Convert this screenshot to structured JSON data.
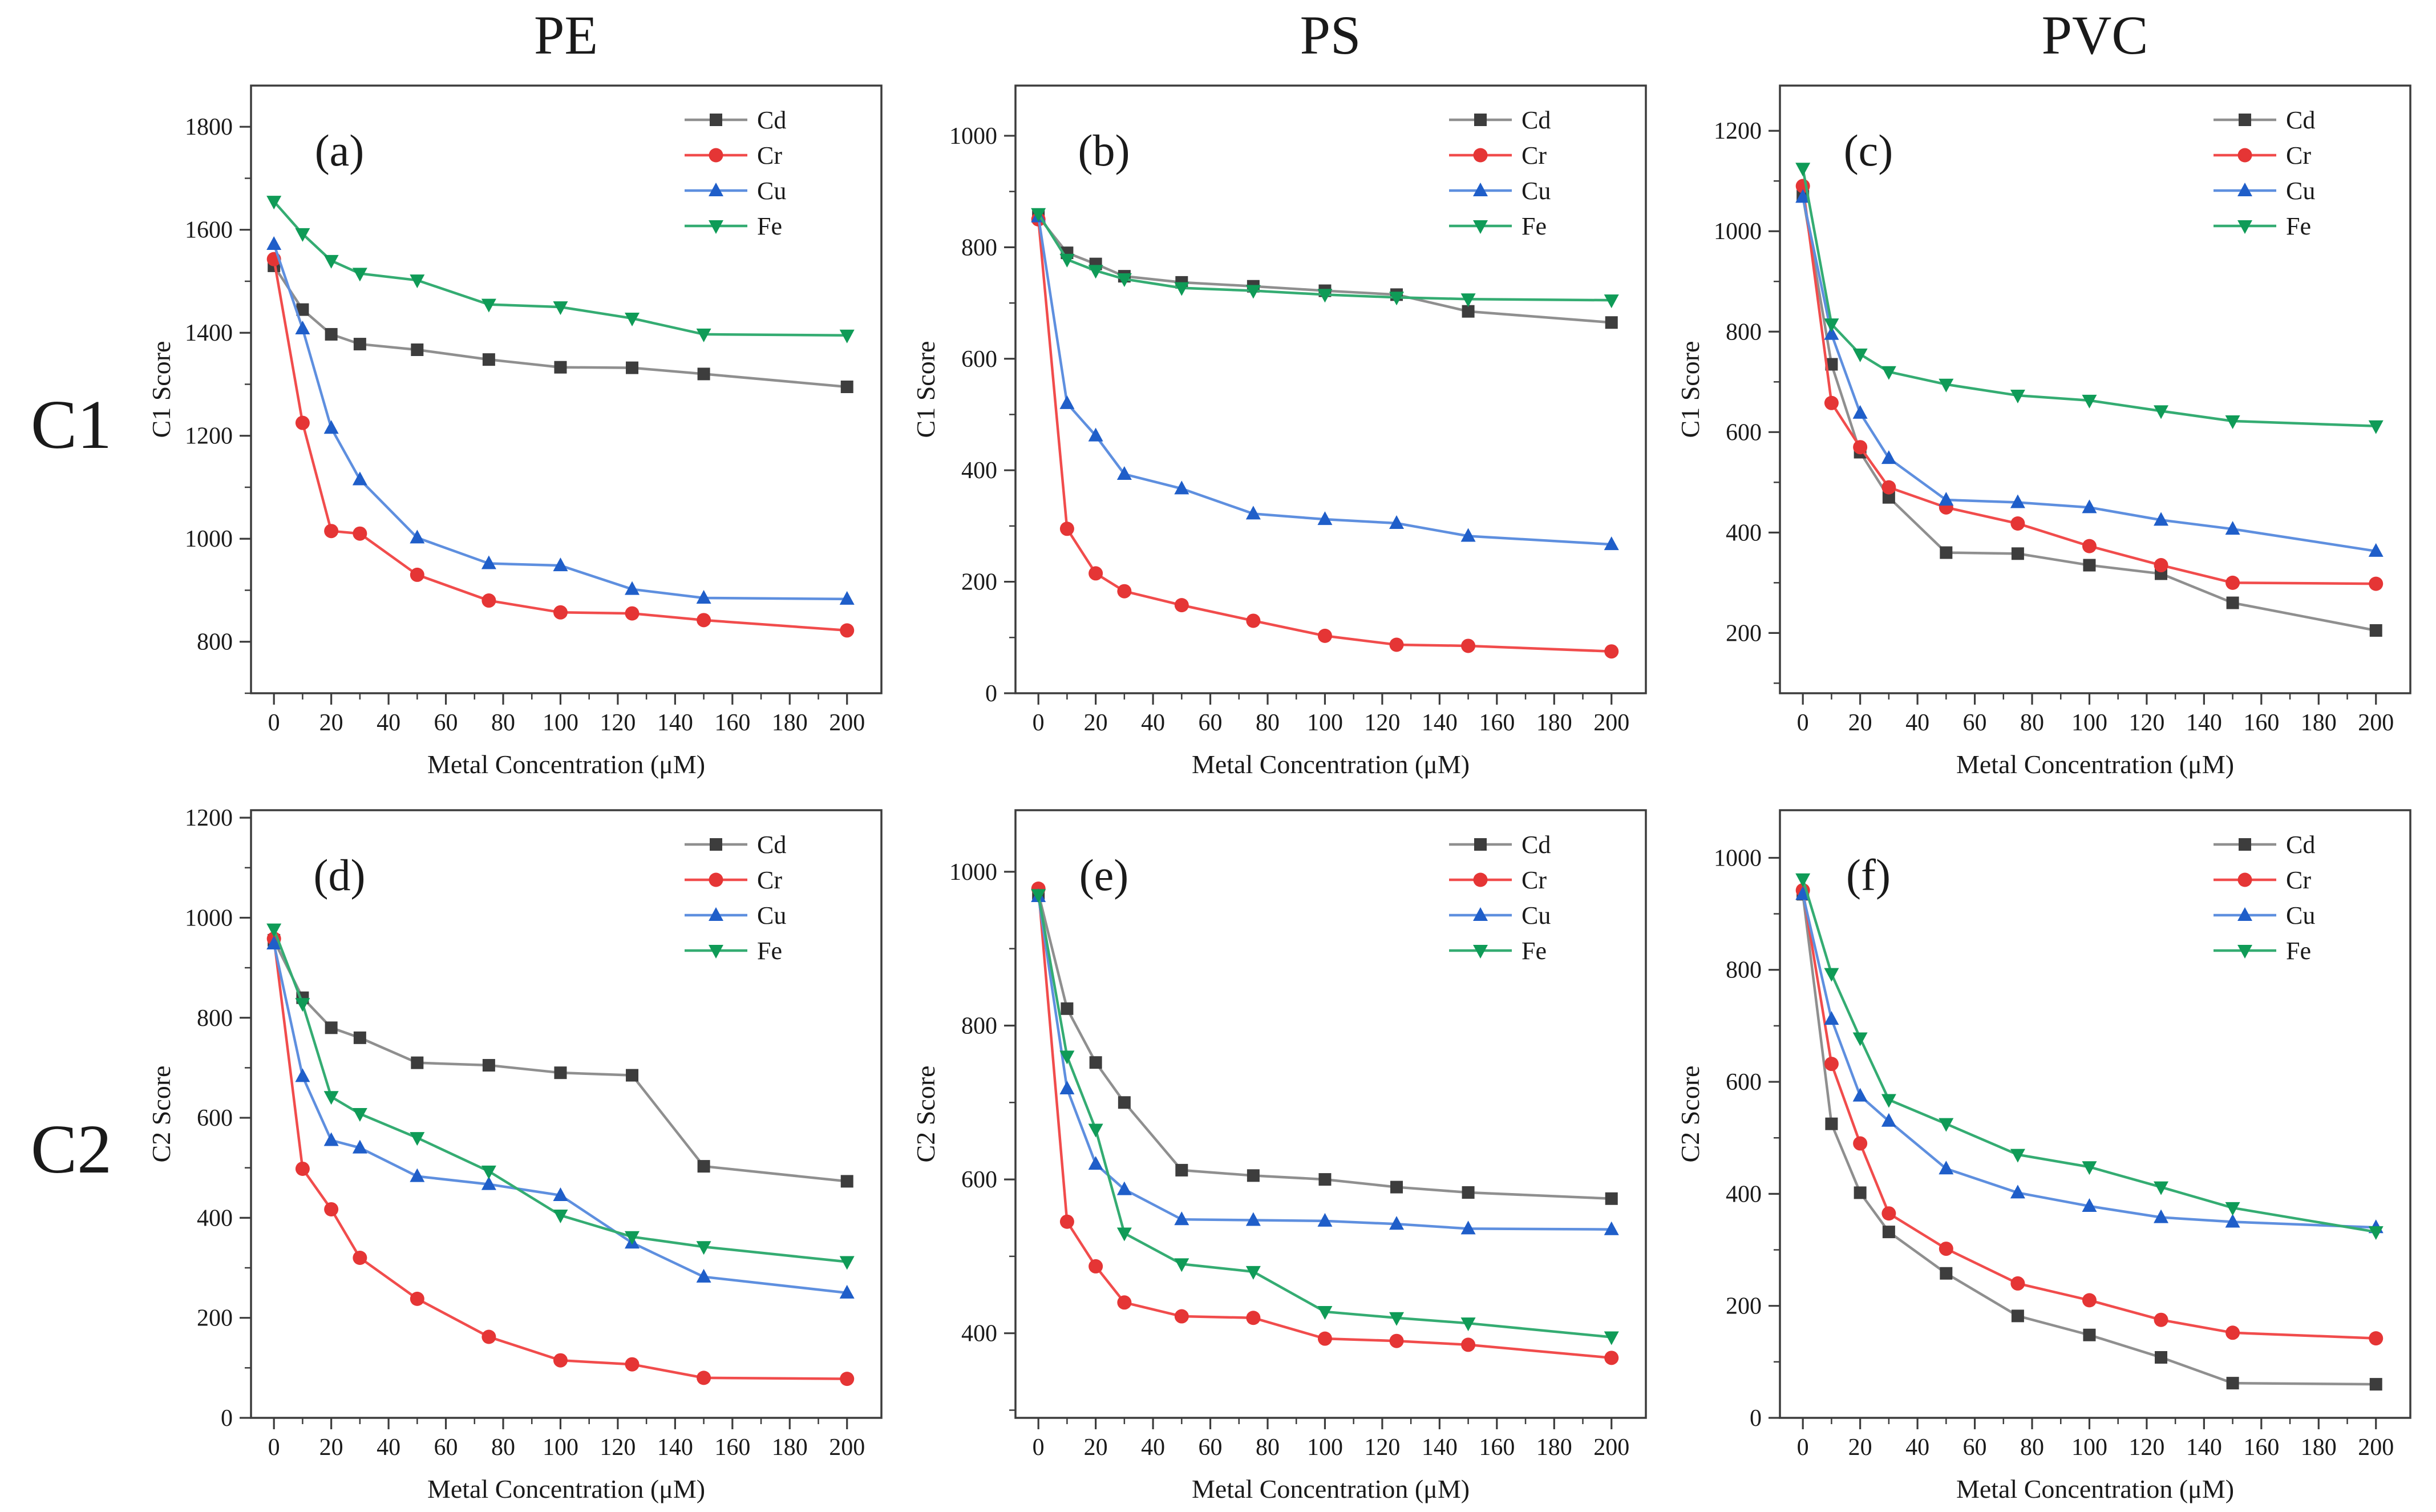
{
  "figure": {
    "background": "#ffffff",
    "columns": [
      {
        "label": "PE"
      },
      {
        "label": "PS"
      },
      {
        "label": "PVC"
      }
    ],
    "rows": [
      {
        "label": "C1"
      },
      {
        "label": "C2"
      }
    ]
  },
  "legend": {
    "entries": [
      "Cd",
      "Cr",
      "Cu",
      "Fe"
    ],
    "position": "top-right"
  },
  "colors": {
    "Cd": {
      "marker": "#3d3d3d",
      "line": "#8f8f8f"
    },
    "Cr": {
      "marker": "#e53535",
      "line": "#f14c4c"
    },
    "Cu": {
      "marker": "#1f5ec9",
      "line": "#5e8fdf"
    },
    "Fe": {
      "marker": "#0f9b57",
      "line": "#34ac72"
    },
    "axis": "#3c3c3c",
    "text": "#1a1a1a"
  },
  "chart_data": [
    {
      "type": "line",
      "panel_label": "(a)",
      "column": "PE",
      "row": "C1",
      "xlabel": "Metal Concentration (μM)",
      "ylabel": "C1 Score",
      "x": [
        0,
        10,
        20,
        30,
        50,
        75,
        100,
        125,
        150,
        200
      ],
      "xlim": [
        -8,
        212
      ],
      "xticks": [
        0,
        20,
        40,
        60,
        80,
        100,
        120,
        140,
        160,
        180,
        200
      ],
      "ylim": [
        700,
        1880
      ],
      "yticks": [
        800,
        1000,
        1200,
        1400,
        1600,
        1800
      ],
      "grid": false,
      "legend_position": "top-right",
      "series": [
        {
          "name": "Cd",
          "marker": "square",
          "values": [
            1530,
            1445,
            1397,
            1378,
            1367,
            1348,
            1333,
            1332,
            1320,
            1295
          ]
        },
        {
          "name": "Cr",
          "marker": "circle",
          "values": [
            1543,
            1225,
            1015,
            1010,
            930,
            880,
            857,
            855,
            842,
            822
          ]
        },
        {
          "name": "Cu",
          "marker": "triangle-up",
          "values": [
            1572,
            1408,
            1215,
            1115,
            1002,
            952,
            948,
            902,
            885,
            883
          ]
        },
        {
          "name": "Fe",
          "marker": "triangle-down",
          "values": [
            1655,
            1592,
            1540,
            1515,
            1502,
            1455,
            1450,
            1428,
            1397,
            1395
          ]
        }
      ]
    },
    {
      "type": "line",
      "panel_label": "(b)",
      "column": "PS",
      "row": "C1",
      "xlabel": "Metal Concentration (μM)",
      "ylabel": "C1 Score",
      "x": [
        0,
        10,
        20,
        30,
        50,
        75,
        100,
        125,
        150,
        200
      ],
      "xlim": [
        -8,
        212
      ],
      "xticks": [
        0,
        20,
        40,
        60,
        80,
        100,
        120,
        140,
        160,
        180,
        200
      ],
      "ylim": [
        0,
        1090
      ],
      "yticks": [
        0,
        200,
        400,
        600,
        800,
        1000
      ],
      "grid": false,
      "legend_position": "top-right",
      "series": [
        {
          "name": "Cd",
          "marker": "square",
          "values": [
            855,
            790,
            770,
            748,
            737,
            730,
            722,
            715,
            685,
            665
          ]
        },
        {
          "name": "Cr",
          "marker": "circle",
          "values": [
            850,
            295,
            215,
            183,
            158,
            130,
            103,
            87,
            85,
            75
          ]
        },
        {
          "name": "Cu",
          "marker": "triangle-up",
          "values": [
            855,
            520,
            462,
            393,
            367,
            322,
            312,
            305,
            282,
            267
          ]
        },
        {
          "name": "Fe",
          "marker": "triangle-down",
          "values": [
            860,
            778,
            758,
            743,
            727,
            722,
            715,
            710,
            707,
            705
          ]
        }
      ]
    },
    {
      "type": "line",
      "panel_label": "(c)",
      "column": "PVC",
      "row": "C1",
      "xlabel": "Metal Concentration (μM)",
      "ylabel": "C1 Score",
      "x": [
        0,
        10,
        20,
        30,
        50,
        75,
        100,
        125,
        150,
        200
      ],
      "xlim": [
        -8,
        212
      ],
      "xticks": [
        0,
        20,
        40,
        60,
        80,
        100,
        120,
        140,
        160,
        180,
        200
      ],
      "ylim": [
        80,
        1290
      ],
      "yticks": [
        200,
        400,
        600,
        800,
        1000,
        1200
      ],
      "grid": false,
      "legend_position": "top-right",
      "series": [
        {
          "name": "Cd",
          "marker": "square",
          "values": [
            1070,
            735,
            560,
            470,
            360,
            358,
            335,
            318,
            260,
            205
          ]
        },
        {
          "name": "Cr",
          "marker": "circle",
          "values": [
            1090,
            658,
            570,
            490,
            450,
            418,
            373,
            335,
            300,
            298
          ]
        },
        {
          "name": "Cu",
          "marker": "triangle-up",
          "values": [
            1068,
            795,
            638,
            548,
            465,
            460,
            450,
            425,
            407,
            363
          ]
        },
        {
          "name": "Fe",
          "marker": "triangle-down",
          "values": [
            1125,
            815,
            755,
            720,
            695,
            673,
            663,
            642,
            622,
            612
          ]
        }
      ]
    },
    {
      "type": "line",
      "panel_label": "(d)",
      "column": "PE",
      "row": "C2",
      "xlabel": "Metal Concentration (μM)",
      "ylabel": "C2 Score",
      "x": [
        0,
        10,
        20,
        30,
        50,
        75,
        100,
        125,
        150,
        200
      ],
      "xlim": [
        -8,
        212
      ],
      "xticks": [
        0,
        20,
        40,
        60,
        80,
        100,
        120,
        140,
        160,
        180,
        200
      ],
      "ylim": [
        0,
        1215
      ],
      "yticks": [
        0,
        200,
        400,
        600,
        800,
        1000,
        1200
      ],
      "grid": false,
      "legend_position": "top-right",
      "series": [
        {
          "name": "Cd",
          "marker": "square",
          "values": [
            955,
            840,
            780,
            760,
            710,
            705,
            690,
            685,
            503,
            473
          ]
        },
        {
          "name": "Cr",
          "marker": "circle",
          "values": [
            958,
            498,
            417,
            320,
            238,
            162,
            115,
            107,
            80,
            78
          ]
        },
        {
          "name": "Cu",
          "marker": "triangle-up",
          "values": [
            948,
            683,
            555,
            540,
            483,
            467,
            445,
            350,
            282,
            250
          ]
        },
        {
          "name": "Fe",
          "marker": "triangle-down",
          "values": [
            977,
            828,
            642,
            608,
            560,
            493,
            405,
            362,
            342,
            312
          ]
        }
      ]
    },
    {
      "type": "line",
      "panel_label": "(e)",
      "column": "PS",
      "row": "C2",
      "xlabel": "Metal Concentration (μM)",
      "ylabel": "C2 Score",
      "x": [
        0,
        10,
        20,
        30,
        50,
        75,
        100,
        125,
        150,
        200
      ],
      "xlim": [
        -8,
        212
      ],
      "xticks": [
        0,
        20,
        40,
        60,
        80,
        100,
        120,
        140,
        160,
        180,
        200
      ],
      "ylim": [
        290,
        1080
      ],
      "yticks": [
        400,
        600,
        800,
        1000
      ],
      "grid": false,
      "legend_position": "top-right",
      "series": [
        {
          "name": "Cd",
          "marker": "square",
          "values": [
            972,
            822,
            752,
            700,
            612,
            605,
            600,
            590,
            583,
            575
          ]
        },
        {
          "name": "Cr",
          "marker": "circle",
          "values": [
            978,
            545,
            487,
            440,
            422,
            420,
            393,
            390,
            385,
            368
          ]
        },
        {
          "name": "Cu",
          "marker": "triangle-up",
          "values": [
            968,
            718,
            620,
            587,
            548,
            547,
            546,
            542,
            536,
            535
          ]
        },
        {
          "name": "Fe",
          "marker": "triangle-down",
          "values": [
            970,
            760,
            665,
            530,
            490,
            480,
            428,
            420,
            413,
            395
          ]
        }
      ]
    },
    {
      "type": "line",
      "panel_label": "(f)",
      "column": "PVC",
      "row": "C2",
      "xlabel": "Metal Concentration (μM)",
      "ylabel": "C2 Score",
      "x": [
        0,
        10,
        20,
        30,
        50,
        75,
        100,
        125,
        150,
        200
      ],
      "xlim": [
        -8,
        212
      ],
      "xticks": [
        0,
        20,
        40,
        60,
        80,
        100,
        120,
        140,
        160,
        180,
        200
      ],
      "ylim": [
        0,
        1085
      ],
      "yticks": [
        0,
        200,
        400,
        600,
        800,
        1000
      ],
      "grid": false,
      "legend_position": "top-right",
      "series": [
        {
          "name": "Cd",
          "marker": "square",
          "values": [
            935,
            525,
            402,
            332,
            258,
            182,
            148,
            108,
            62,
            60
          ]
        },
        {
          "name": "Cr",
          "marker": "circle",
          "values": [
            942,
            632,
            490,
            365,
            302,
            240,
            210,
            175,
            152,
            142
          ]
        },
        {
          "name": "Cu",
          "marker": "triangle-up",
          "values": [
            935,
            712,
            575,
            530,
            445,
            402,
            378,
            358,
            350,
            340
          ]
        },
        {
          "name": "Fe",
          "marker": "triangle-down",
          "values": [
            962,
            793,
            678,
            568,
            525,
            470,
            448,
            412,
            375,
            332
          ]
        }
      ]
    }
  ]
}
